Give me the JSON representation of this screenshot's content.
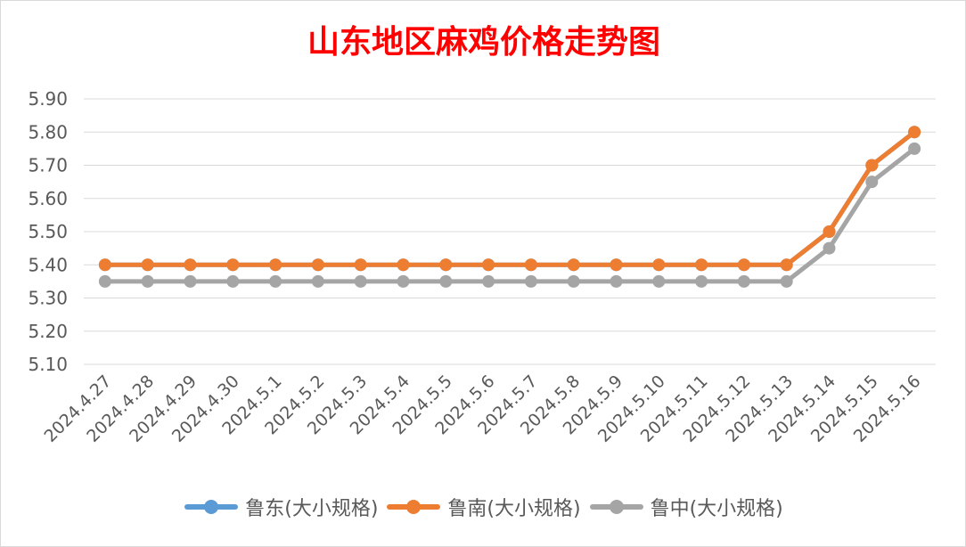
{
  "chart_data": {
    "type": "line",
    "title": "山东地区麻鸡价格走势图",
    "xlabel": "",
    "ylabel": "",
    "categories": [
      "2024.4.27",
      "2024.4.28",
      "2024.4.29",
      "2024.4.30",
      "2024.5.1",
      "2024.5.2",
      "2024.5.3",
      "2024.5.4",
      "2024.5.5",
      "2024.5.6",
      "2024.5.7",
      "2024.5.8",
      "2024.5.9",
      "2024.5.10",
      "2024.5.11",
      "2024.5.12",
      "2024.5.13",
      "2024.5.14",
      "2024.5.15",
      "2024.5.16"
    ],
    "ylim": [
      5.1,
      5.9
    ],
    "yticks": [
      "5.10",
      "5.20",
      "5.30",
      "5.40",
      "5.50",
      "5.60",
      "5.70",
      "5.80",
      "5.90"
    ],
    "grid": true,
    "legend_position": "bottom",
    "series": [
      {
        "name": "鲁东(大小规格)",
        "color": "#5b9bd5",
        "values": [
          5.4,
          5.4,
          5.4,
          5.4,
          5.4,
          5.4,
          5.4,
          5.4,
          5.4,
          5.4,
          5.4,
          5.4,
          5.4,
          5.4,
          5.4,
          5.4,
          5.4,
          5.5,
          5.7,
          5.8
        ]
      },
      {
        "name": "鲁南(大小规格)",
        "color": "#ed7d31",
        "values": [
          5.4,
          5.4,
          5.4,
          5.4,
          5.4,
          5.4,
          5.4,
          5.4,
          5.4,
          5.4,
          5.4,
          5.4,
          5.4,
          5.4,
          5.4,
          5.4,
          5.4,
          5.5,
          5.7,
          5.8
        ]
      },
      {
        "name": "鲁中(大小规格)",
        "color": "#a5a5a5",
        "values": [
          5.35,
          5.35,
          5.35,
          5.35,
          5.35,
          5.35,
          5.35,
          5.35,
          5.35,
          5.35,
          5.35,
          5.35,
          5.35,
          5.35,
          5.35,
          5.35,
          5.35,
          5.45,
          5.65,
          5.75
        ]
      }
    ]
  },
  "colors": {
    "title": "#ff0000",
    "axis_text": "#595959",
    "grid": "#d9d9d9"
  }
}
